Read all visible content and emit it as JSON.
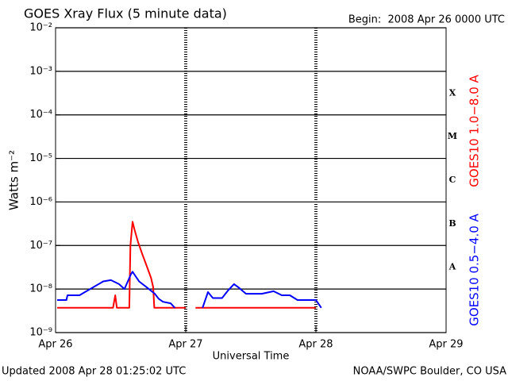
{
  "chart_data": {
    "type": "line",
    "title": "GOES Xray Flux (5 minute data)",
    "subtitle": "Begin:  2008 Apr 26 0000 UTC",
    "y_label": "Watts m⁻²",
    "x_label": "Universal Time",
    "footer_left": "Updated 2008 Apr 28 01:25:02 UTC",
    "footer_right": "NOAA/SWPC Boulder, CO USA",
    "log_y": true,
    "grid": true,
    "xlim": [
      0,
      72
    ],
    "xticks": [
      {
        "value": 0,
        "label": "Apr 26"
      },
      {
        "value": 24,
        "label": "Apr 27"
      },
      {
        "value": 48,
        "label": "Apr 28"
      },
      {
        "value": 72,
        "label": "Apr 29"
      }
    ],
    "ylim": [
      1e-09,
      0.01
    ],
    "yticks": [
      {
        "value": 1e-09,
        "label": "10⁻⁹"
      },
      {
        "value": 1e-08,
        "label": "10⁻⁸"
      },
      {
        "value": 1e-07,
        "label": "10⁻⁷"
      },
      {
        "value": 1e-06,
        "label": "10⁻⁶"
      },
      {
        "value": 1e-05,
        "label": "10⁻⁵"
      },
      {
        "value": 0.0001,
        "label": "10⁻⁴"
      },
      {
        "value": 0.001,
        "label": "10⁻³"
      },
      {
        "value": 0.01,
        "label": "10⁻²"
      }
    ],
    "flare_classes": [
      {
        "label": "X",
        "value": 0.0001
      },
      {
        "label": "M",
        "value": 1e-05
      },
      {
        "label": "C",
        "value": 1e-06
      },
      {
        "label": "B",
        "value": 1e-07
      },
      {
        "label": "A",
        "value": 1e-08
      }
    ],
    "series": [
      {
        "name": "GOES10 1.0−8.0 A",
        "color": "#ff0000",
        "x": [
          0.3,
          10.6,
          11.0,
          11.3,
          13.6,
          13.8,
          14.2,
          14.6,
          15.2,
          16.0,
          16.8,
          17.6,
          18.0,
          18.2,
          24.0,
          24.9,
          25.8,
          48.0
        ],
        "values": [
          3.7e-09,
          3.7e-09,
          7.2e-09,
          3.7e-09,
          3.7e-09,
          1e-07,
          3.5e-07,
          2.2e-07,
          1.2e-07,
          6.3e-08,
          3.4e-08,
          1.8e-08,
          1.1e-08,
          3.7e-09,
          3.7e-09,
          null,
          3.7e-09,
          3.7e-09
        ]
      },
      {
        "name": "GOES10 0.5−4.0 A",
        "color": "#0000ff",
        "x": [
          0.3,
          2.0,
          2.2,
          4.4,
          8.8,
          10.2,
          11.7,
          12.7,
          13.9,
          14.2,
          15.4,
          16.8,
          18.3,
          19.0,
          19.8,
          21.2,
          22.0,
          24.5,
          27.1,
          28.1,
          29.0,
          30.7,
          31.8,
          32.9,
          33.7,
          35.1,
          38.0,
          40.2,
          41.7,
          43.2,
          44.6,
          48.0,
          49.0
        ],
        "values": [
          5.6e-09,
          5.6e-09,
          7.2e-09,
          7.2e-09,
          1.5e-08,
          1.6e-08,
          1.3e-08,
          1e-08,
          2.2e-08,
          2.5e-08,
          1.5e-08,
          1.1e-08,
          7.8e-09,
          6e-09,
          5.1e-09,
          4.7e-09,
          3.7e-09,
          null,
          3.7e-09,
          8.5e-09,
          6.2e-09,
          6.2e-09,
          9.3e-09,
          1.3e-08,
          1.1e-08,
          7.8e-09,
          7.8e-09,
          8.9e-09,
          7.2e-09,
          7.2e-09,
          5.6e-09,
          5.6e-09,
          3.7e-09
        ]
      }
    ]
  }
}
